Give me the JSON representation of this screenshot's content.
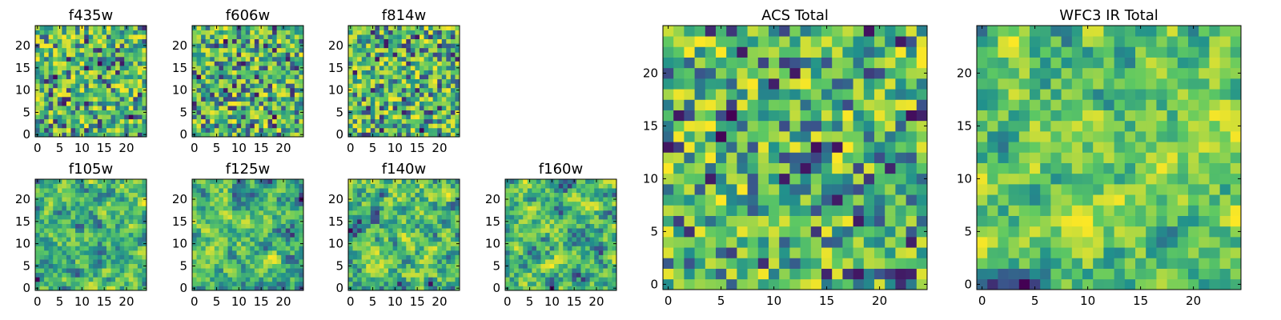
{
  "chart_data": [
    {
      "type": "heatmap",
      "title": "f435w",
      "xticks": [
        "0",
        "5",
        "10",
        "15",
        "20"
      ],
      "yticks": [
        "0",
        "5",
        "10",
        "15",
        "20"
      ],
      "xlim": [
        0,
        25
      ],
      "ylim": [
        0,
        25
      ],
      "grid_size": 25,
      "colormap": "viridis",
      "value_range": [
        0,
        1
      ],
      "seed": 11,
      "smooth": 0
    },
    {
      "type": "heatmap",
      "title": "f606w",
      "xticks": [
        "0",
        "5",
        "10",
        "15",
        "20"
      ],
      "yticks": [
        "0",
        "5",
        "10",
        "15",
        "20"
      ],
      "xlim": [
        0,
        25
      ],
      "ylim": [
        0,
        25
      ],
      "grid_size": 25,
      "colormap": "viridis",
      "value_range": [
        0,
        1
      ],
      "seed": 23,
      "smooth": 0
    },
    {
      "type": "heatmap",
      "title": "f814w",
      "xticks": [
        "0",
        "5",
        "10",
        "15",
        "20"
      ],
      "yticks": [
        "0",
        "5",
        "10",
        "15",
        "20"
      ],
      "xlim": [
        0,
        25
      ],
      "ylim": [
        0,
        25
      ],
      "grid_size": 25,
      "colormap": "viridis",
      "value_range": [
        0,
        1
      ],
      "seed": 37,
      "smooth": 0
    },
    {
      "type": "heatmap",
      "title": "f105w",
      "xticks": [
        "0",
        "5",
        "10",
        "15",
        "20"
      ],
      "yticks": [
        "0",
        "5",
        "10",
        "15",
        "20"
      ],
      "xlim": [
        0,
        25
      ],
      "ylim": [
        0,
        25
      ],
      "grid_size": 25,
      "colormap": "viridis",
      "value_range": [
        0,
        1
      ],
      "seed": 41,
      "smooth": 1
    },
    {
      "type": "heatmap",
      "title": "f125w",
      "xticks": [
        "0",
        "5",
        "10",
        "15",
        "20"
      ],
      "yticks": [
        "0",
        "5",
        "10",
        "15",
        "20"
      ],
      "xlim": [
        0,
        25
      ],
      "ylim": [
        0,
        25
      ],
      "grid_size": 25,
      "colormap": "viridis",
      "value_range": [
        0,
        1
      ],
      "seed": 53,
      "smooth": 1
    },
    {
      "type": "heatmap",
      "title": "f140w",
      "xticks": [
        "0",
        "5",
        "10",
        "15",
        "20"
      ],
      "yticks": [
        "0",
        "5",
        "10",
        "15",
        "20"
      ],
      "xlim": [
        0,
        25
      ],
      "ylim": [
        0,
        25
      ],
      "grid_size": 25,
      "colormap": "viridis",
      "value_range": [
        0,
        1
      ],
      "seed": 67,
      "smooth": 1
    },
    {
      "type": "heatmap",
      "title": "f160w",
      "xticks": [
        "0",
        "5",
        "10",
        "15",
        "20"
      ],
      "yticks": [
        "0",
        "5",
        "10",
        "15",
        "20"
      ],
      "xlim": [
        0,
        25
      ],
      "ylim": [
        0,
        25
      ],
      "grid_size": 25,
      "colormap": "viridis",
      "value_range": [
        0,
        1
      ],
      "seed": 71,
      "smooth": 1
    },
    {
      "type": "heatmap",
      "title": "ACS Total",
      "xticks": [
        "0",
        "5",
        "10",
        "15",
        "20"
      ],
      "yticks": [
        "0",
        "5",
        "10",
        "15",
        "20"
      ],
      "xlim": [
        0,
        25
      ],
      "ylim": [
        0,
        25
      ],
      "grid_size": 25,
      "colormap": "viridis",
      "value_range": [
        0,
        1
      ],
      "seed": 83,
      "smooth": 0
    },
    {
      "type": "heatmap",
      "title": "WFC3 IR Total",
      "xticks": [
        "0",
        "5",
        "10",
        "15",
        "20"
      ],
      "yticks": [
        "0",
        "5",
        "10",
        "15",
        "20"
      ],
      "xlim": [
        0,
        25
      ],
      "ylim": [
        0,
        25
      ],
      "grid_size": 25,
      "colormap": "viridis",
      "value_range": [
        0,
        1
      ],
      "seed": 97,
      "smooth": 1
    }
  ],
  "colors": {
    "viridis_stops": [
      "#440154",
      "#3b528b",
      "#21918c",
      "#5ec962",
      "#fde725"
    ],
    "axes": "#000000",
    "background": "#ffffff"
  }
}
